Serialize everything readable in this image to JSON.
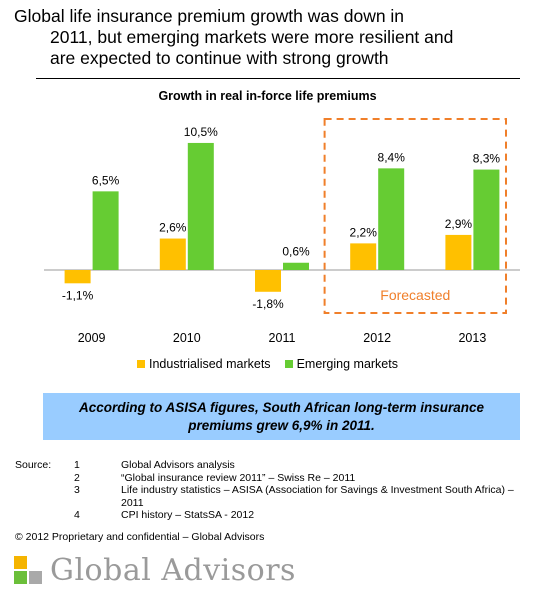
{
  "headline": {
    "line1": "Global life insurance premium growth was down in",
    "line2": "2011, but emerging markets were more resilient and",
    "line3": "are expected to continue with strong growth"
  },
  "chart_data": {
    "type": "bar",
    "title": "Growth in real in-force life premiums",
    "categories": [
      "2009",
      "2010",
      "2011",
      "2012",
      "2013"
    ],
    "series": [
      {
        "name": "Industrialised markets",
        "values": [
          -1.1,
          2.6,
          -1.8,
          2.2,
          2.9
        ],
        "labels": [
          "-1,1%",
          "2,6%",
          "-1,8%",
          "2,2%",
          "2,9%"
        ],
        "color": "#ffc000"
      },
      {
        "name": "Emerging markets",
        "values": [
          6.5,
          10.5,
          0.6,
          8.4,
          8.3
        ],
        "labels": [
          "6,5%",
          "10,5%",
          "0,6%",
          "8,4%",
          "8,3%"
        ],
        "color": "#66cc33"
      }
    ],
    "forecast_label": "Forecasted",
    "forecast_categories": [
      "2012",
      "2013"
    ],
    "forecast_color": "#f07f2a",
    "ylim": [
      -3,
      11.5
    ],
    "grid": false,
    "legend_position": "bottom"
  },
  "callout": {
    "line1": "According to ASISA figures, South African long-term insurance",
    "line2": "premiums grew 6,9% in 2011.",
    "background": "#99ccff"
  },
  "sources": {
    "label": "Source:",
    "items": [
      {
        "num": "1",
        "text": "Global Advisors analysis"
      },
      {
        "num": "2",
        "text": "“Global insurance review 2011” – Swiss Re – 2011"
      },
      {
        "num": "3",
        "text": "Life industry statistics – ASISA (Association for Savings & Investment South Africa) – 2011"
      },
      {
        "num": "4",
        "text": "CPI history – StatsSA - 2012"
      }
    ]
  },
  "copyright": "© 2012 Proprietary and confidential – Global Advisors",
  "logo": {
    "text": "Global Advisors",
    "colors": [
      "#f5b400",
      "#6bbf3a",
      "#a9a9a9"
    ]
  }
}
